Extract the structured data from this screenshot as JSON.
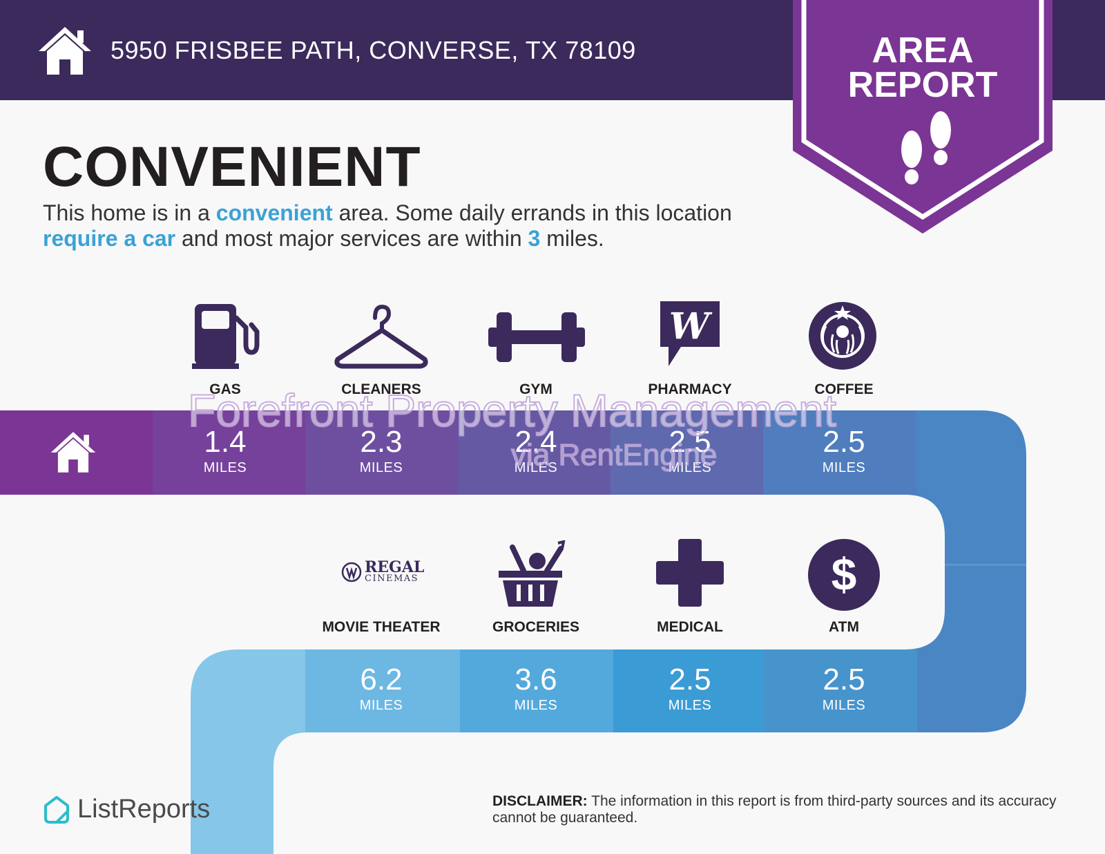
{
  "header": {
    "address": "5950 FRISBEE PATH, CONVERSE, TX 78109",
    "home_icon": "house-icon",
    "badge_line1": "AREA",
    "badge_line2": "REPORT",
    "badge_icon": "footprints-icon",
    "colors": {
      "header_bg": "#3b2a5b",
      "badge_bg": "#7b3594"
    }
  },
  "intro": {
    "title": "CONVENIENT",
    "t1": "This home is in a ",
    "h1": "convenient",
    "t2": " area. Some daily errands in this location ",
    "h2": "require a car",
    "t3": " and most major services are within ",
    "h3": "3",
    "t4": " miles.",
    "highlight_color": "#3aa2d6"
  },
  "row1": [
    {
      "label": "GAS",
      "value": "1.4",
      "unit": "MILES",
      "icon": "gas-pump-icon"
    },
    {
      "label": "CLEANERS",
      "value": "2.3",
      "unit": "MILES",
      "icon": "hanger-icon"
    },
    {
      "label": "GYM",
      "value": "2.4",
      "unit": "MILES",
      "icon": "dumbbell-icon"
    },
    {
      "label": "PHARMACY",
      "value": "2.5",
      "unit": "MILES",
      "icon": "walgreens-logo-icon"
    },
    {
      "label": "COFFEE",
      "value": "2.5",
      "unit": "MILES",
      "icon": "starbucks-logo-icon"
    }
  ],
  "row2": [
    {
      "label": "MOVIE THEATER",
      "value": "6.2",
      "unit": "MILES",
      "icon": "regal-cinemas-logo-icon",
      "logo_line1": "REGAL",
      "logo_line2": "CINEMAS"
    },
    {
      "label": "GROCERIES",
      "value": "3.6",
      "unit": "MILES",
      "icon": "grocery-basket-icon"
    },
    {
      "label": "MEDICAL",
      "value": "2.5",
      "unit": "MILES",
      "icon": "medical-cross-icon"
    },
    {
      "label": "ATM",
      "value": "2.5",
      "unit": "MILES",
      "icon": "dollar-icon"
    }
  ],
  "watermark": {
    "line1": "Forefront Property Management",
    "line2": "via RentEngine"
  },
  "footer": {
    "brand": "ListReports",
    "brand_icon": "listreports-logo-icon",
    "disclaimer_label": "DISCLAIMER:",
    "disclaimer_text": " The information in this report is from third-party sources and its accuracy cannot be guaranteed."
  }
}
